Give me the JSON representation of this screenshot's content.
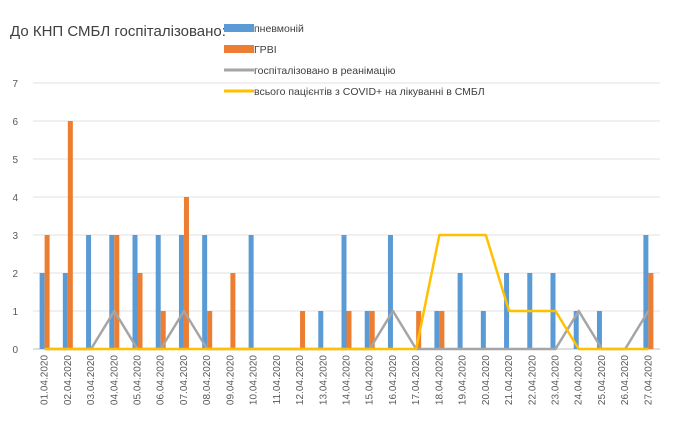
{
  "chart_data": {
    "type": "bar",
    "title": "До КНП СМБЛ госпіталізовано:",
    "xlabel": "",
    "ylabel": "",
    "ylim": [
      0,
      7
    ],
    "yticks": [
      0,
      1,
      2,
      3,
      4,
      5,
      6,
      7
    ],
    "grid": true,
    "legend_position": "top",
    "categories": [
      "01.04.2020",
      "02.04.2020",
      "03.04.2020",
      "04.04.2020",
      "05.04.2020",
      "06.04.2020",
      "07.04.2020",
      "08.04.2020",
      "09.04.2020",
      "10.04.2020",
      "11.04.2020",
      "12.04.2020",
      "13.04.2020",
      "14.04.2020",
      "15.04.2020",
      "16.04.2020",
      "17.04.2020",
      "18.04.2020",
      "19.04.2020",
      "20.04.2020",
      "21.04.2020",
      "22.04.2020",
      "23.04.2020",
      "24.04.2020",
      "25.04.2020",
      "26.04.2020",
      "27.04.2020"
    ],
    "series": [
      {
        "name": "пневмоній",
        "kind": "bar",
        "color": "#5b9bd5",
        "values": [
          2,
          2,
          3,
          3,
          3,
          3,
          3,
          3,
          0,
          3,
          0,
          0,
          1,
          3,
          1,
          3,
          0,
          1,
          2,
          1,
          2,
          2,
          2,
          1,
          1,
          0,
          3
        ]
      },
      {
        "name": "ГРВІ",
        "kind": "bar",
        "color": "#ed7d31",
        "values": [
          3,
          6,
          0,
          3,
          2,
          1,
          4,
          1,
          2,
          0,
          0,
          1,
          0,
          1,
          1,
          0,
          1,
          1,
          0,
          0,
          0,
          0,
          0,
          0,
          0,
          0,
          2
        ]
      },
      {
        "name": "госпіталізовано в реанімацію",
        "kind": "line",
        "color": "#a5a5a5",
        "values": [
          0,
          0,
          0,
          1,
          0,
          0,
          1,
          0,
          0,
          0,
          0,
          0,
          0,
          0,
          0,
          1,
          0,
          0,
          0,
          0,
          0,
          0,
          0,
          1,
          0,
          0,
          1
        ]
      },
      {
        "name": "всього пацієнтів з COVID+ на лікуванні в СМБЛ",
        "kind": "line",
        "color": "#ffc000",
        "values": [
          0,
          0,
          0,
          0,
          0,
          0,
          0,
          0,
          0,
          0,
          0,
          0,
          0,
          0,
          0,
          0,
          0,
          3,
          3,
          3,
          1,
          1,
          1,
          0,
          0,
          0,
          0
        ]
      }
    ]
  }
}
